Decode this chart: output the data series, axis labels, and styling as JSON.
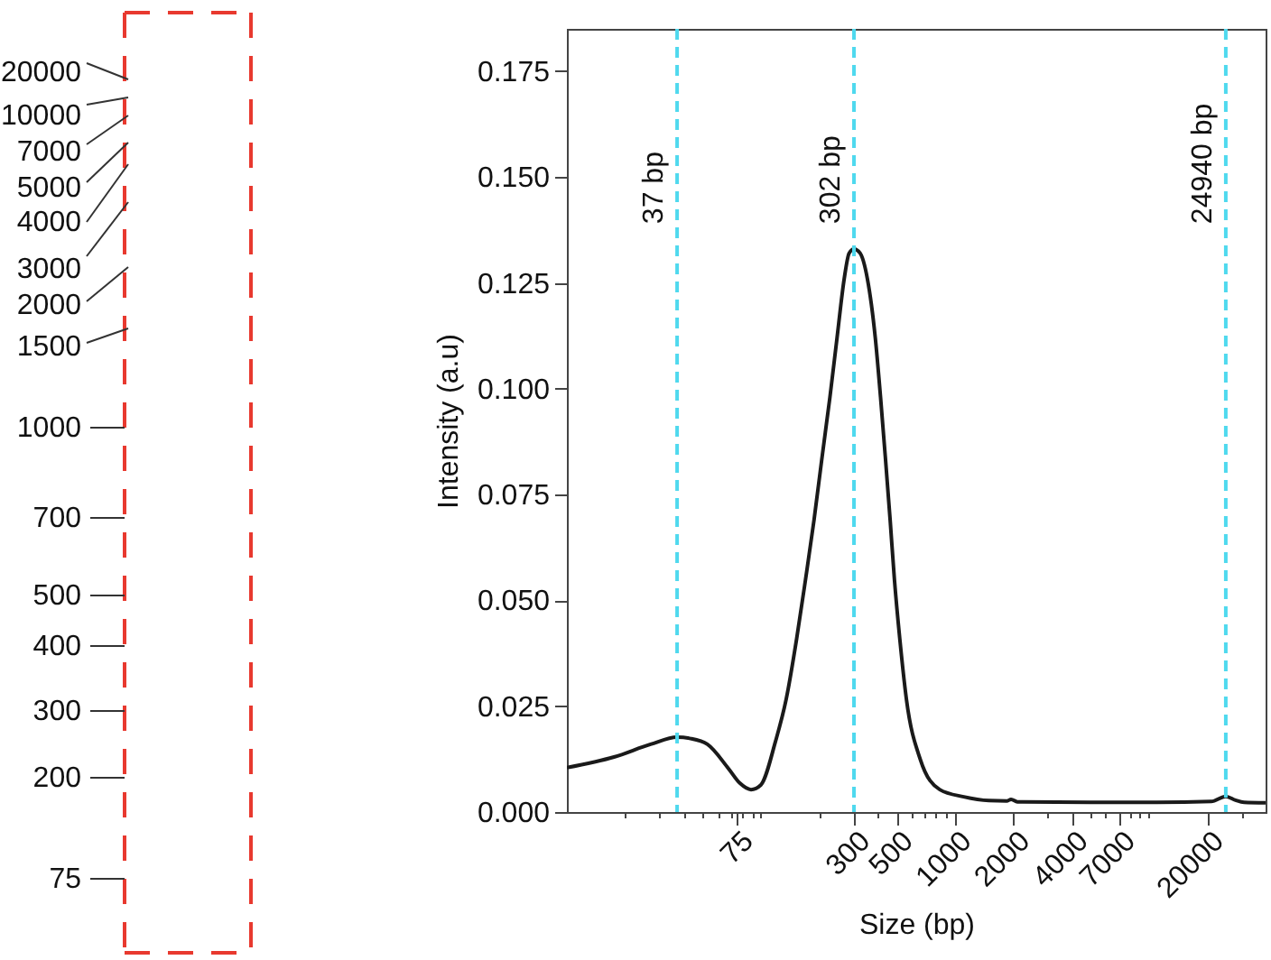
{
  "chart_data": [
    {
      "type": "other",
      "annotations": [
        "20000",
        "10000",
        "7000",
        "5000",
        "4000",
        "3000",
        "2000",
        "1500",
        "1000",
        "700",
        "500",
        "400",
        "300",
        "200",
        "75"
      ]
    },
    {
      "type": "line",
      "xlabel": "Size (bp)",
      "ylabel": "Intensity (a.u)",
      "log": "x",
      "x": [
        10,
        17.5,
        27,
        37,
        43,
        53,
        68,
        78,
        89,
        100,
        119,
        135,
        153,
        170,
        188,
        207,
        227,
        247,
        269,
        285,
        302,
        325,
        354,
        389,
        414,
        438,
        464,
        488,
        520,
        563,
        664,
        836,
        1112,
        1500,
        1850,
        1950,
        2100,
        5000,
        11000,
        21000,
        24940,
        28000,
        31000,
        40000
      ],
      "series": [
        {
          "color": "#1a1a1a",
          "values": [
            0.0105,
            0.013,
            0.016,
            0.0177,
            0.0174,
            0.016,
            0.0103,
            0.0068,
            0.0053,
            0.0064,
            0.0167,
            0.0266,
            0.041,
            0.055,
            0.069,
            0.084,
            0.098,
            0.112,
            0.126,
            0.132,
            0.133,
            0.132,
            0.126,
            0.112,
            0.098,
            0.084,
            0.069,
            0.055,
            0.041,
            0.0266,
            0.0124,
            0.0053,
            0.0036,
            0.0027,
            0.0026,
            0.003,
            0.0024,
            0.0023,
            0.0023,
            0.0025,
            0.0037,
            0.0028,
            0.0023,
            0.0022
          ]
        }
      ],
      "xlim": [
        10,
        40000
      ],
      "ylim": [
        0,
        0.185
      ],
      "xticks": [
        {
          "value": 20,
          "label": null
        },
        {
          "value": 30,
          "label": null
        },
        {
          "value": 40,
          "label": null
        },
        {
          "value": 50,
          "label": null
        },
        {
          "value": 60,
          "label": null
        },
        {
          "value": 70,
          "label": null
        },
        75,
        {
          "value": 80,
          "label": null
        },
        {
          "value": 90,
          "label": null
        },
        {
          "value": 100,
          "label": null
        },
        {
          "value": 200,
          "label": null
        },
        300,
        {
          "value": 400,
          "label": null
        },
        500,
        {
          "value": 600,
          "label": null
        },
        {
          "value": 700,
          "label": null
        },
        {
          "value": 800,
          "label": null
        },
        {
          "value": 900,
          "label": null
        },
        1000,
        2000,
        {
          "value": 3000,
          "label": null
        },
        4000,
        {
          "value": 5000,
          "label": null
        },
        {
          "value": 6000,
          "label": null
        },
        7000,
        {
          "value": 8000,
          "label": null
        },
        {
          "value": 9000,
          "label": null
        },
        {
          "value": 10000,
          "label": null
        },
        20000,
        {
          "value": 30000,
          "label": null
        }
      ],
      "yticks": [
        {
          "value": 0,
          "label": "0.000"
        },
        {
          "value": 0.025,
          "label": "0.025"
        },
        {
          "value": 0.05,
          "label": "0.050"
        },
        {
          "value": 0.075,
          "label": "0.075"
        },
        {
          "value": 0.1,
          "label": "0.100"
        },
        {
          "value": 0.125,
          "label": "0.125"
        },
        {
          "value": 0.15,
          "label": "0.150"
        },
        {
          "value": 0.175,
          "label": "0.175"
        }
      ],
      "ref_lines": [
        {
          "axis": "x",
          "value": 37,
          "label": "37 bp",
          "color": "#4fd9ee",
          "line_style": "dashed"
        },
        {
          "axis": "x",
          "value": 302,
          "label": "302 bp",
          "color": "#4fd9ee",
          "line_style": "dashed"
        },
        {
          "axis": "x",
          "value": 24940,
          "label": "24940 bp",
          "color": "#4fd9ee",
          "line_style": "dashed"
        }
      ]
    }
  ]
}
